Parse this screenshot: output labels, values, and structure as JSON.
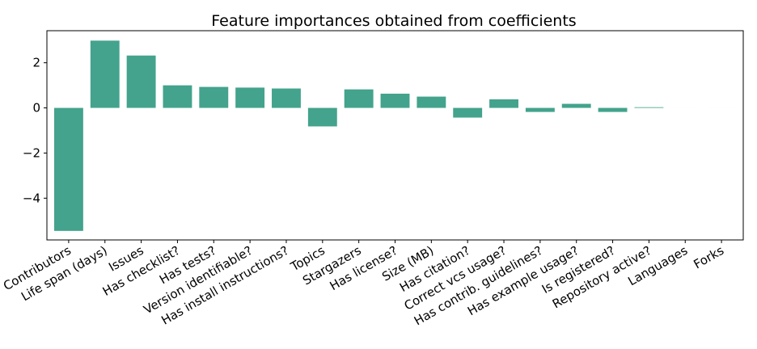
{
  "chart_data": {
    "type": "bar",
    "title": "Feature importances obtained from coefficients",
    "xlabel": "",
    "ylabel": "",
    "categories": [
      "Contributors",
      "Life span (days)",
      "Issues",
      "Has checklist?",
      "Has tests?",
      "Version identifiable?",
      "Has install instructions?",
      "Topics",
      "Stargazers",
      "Has license?",
      "Size (MB)",
      "Has citation?",
      "Correct vcs usage?",
      "Has contrib. guidelines?",
      "Has example usage?",
      "Is registered?",
      "Repository active?",
      "Languages",
      "Forks"
    ],
    "values": [
      -5.45,
      2.98,
      2.32,
      1.0,
      0.93,
      0.9,
      0.86,
      -0.82,
      0.82,
      0.63,
      0.5,
      -0.43,
      0.38,
      -0.18,
      0.18,
      -0.18,
      0.03,
      0.0,
      0.0
    ],
    "ylim": [
      -5.85,
      3.42
    ],
    "yticks": [
      -4,
      -2,
      0,
      2
    ],
    "ytick_labels": [
      "−4",
      "−2",
      "0",
      "2"
    ],
    "bar_color": "#43a38c",
    "grid": false,
    "legend": "none"
  }
}
